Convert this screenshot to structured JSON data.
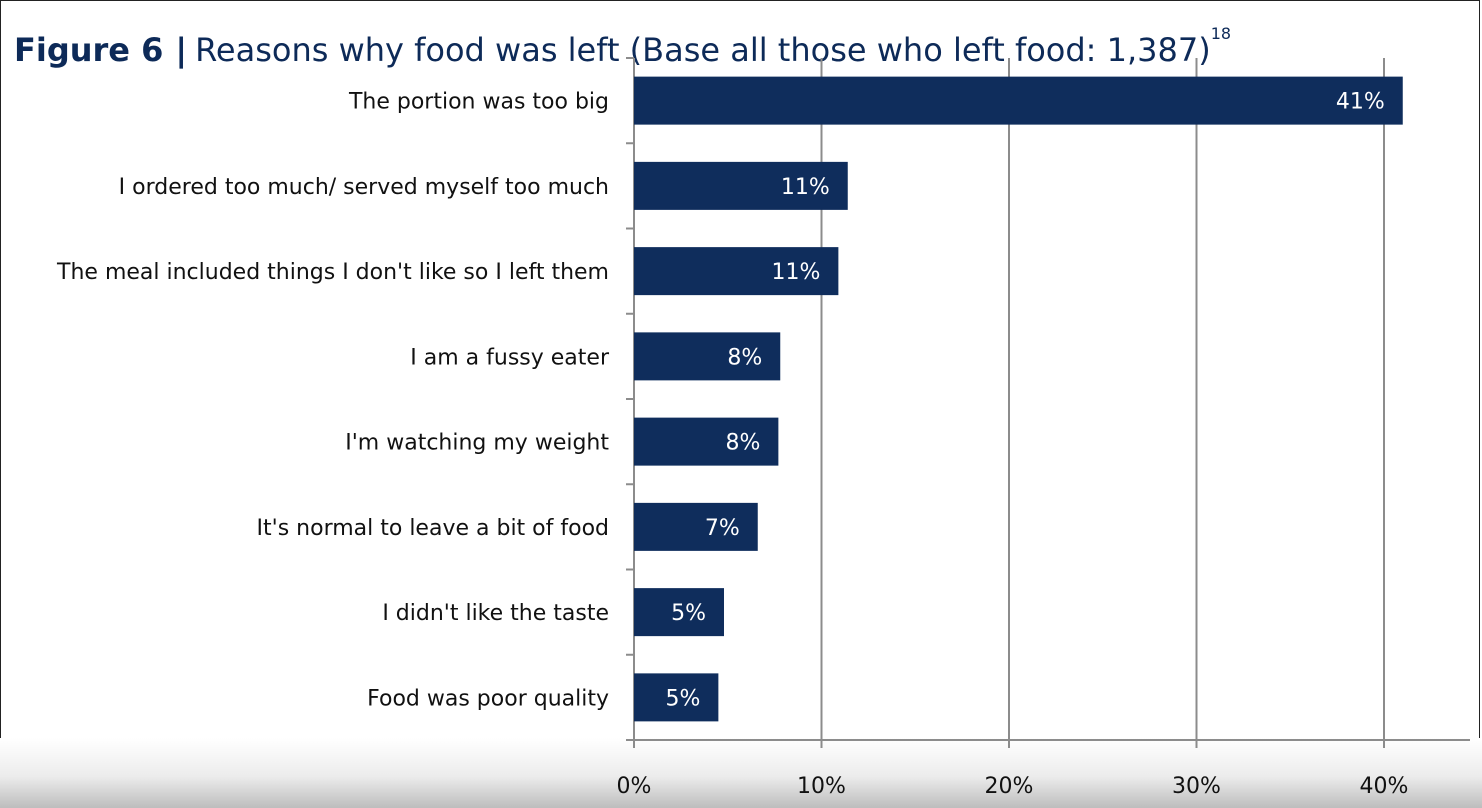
{
  "header": {
    "figure_label": "Figure 6",
    "separator": "|",
    "title": "Reasons why food was left (Base all those who left food: 1,387)",
    "footnote": "18"
  },
  "chart_data": {
    "type": "bar",
    "orientation": "horizontal",
    "categories": [
      "The portion was too big",
      "I ordered too much/ served myself too much",
      "The meal included things I don't like so I left them",
      "I am a fussy eater",
      "I'm watching my weight",
      "It's normal to leave a bit of food",
      "I didn't like the taste",
      "Food was poor quality"
    ],
    "values": [
      41,
      11.4,
      10.9,
      7.8,
      7.7,
      6.6,
      4.8,
      4.5
    ],
    "data_labels": [
      "41%",
      "11%",
      "11%",
      "8%",
      "8%",
      "7%",
      "5%",
      "5%"
    ],
    "xlim": [
      0,
      45
    ],
    "xticks": [
      0,
      10,
      20,
      30,
      40
    ],
    "xtick_labels": [
      "0%",
      "10%",
      "20%",
      "30%",
      "40%"
    ],
    "grid": true,
    "bar_color": "#0f2d5c",
    "title_color": "#0d2a58",
    "grid_color": "#8c8c8c"
  }
}
